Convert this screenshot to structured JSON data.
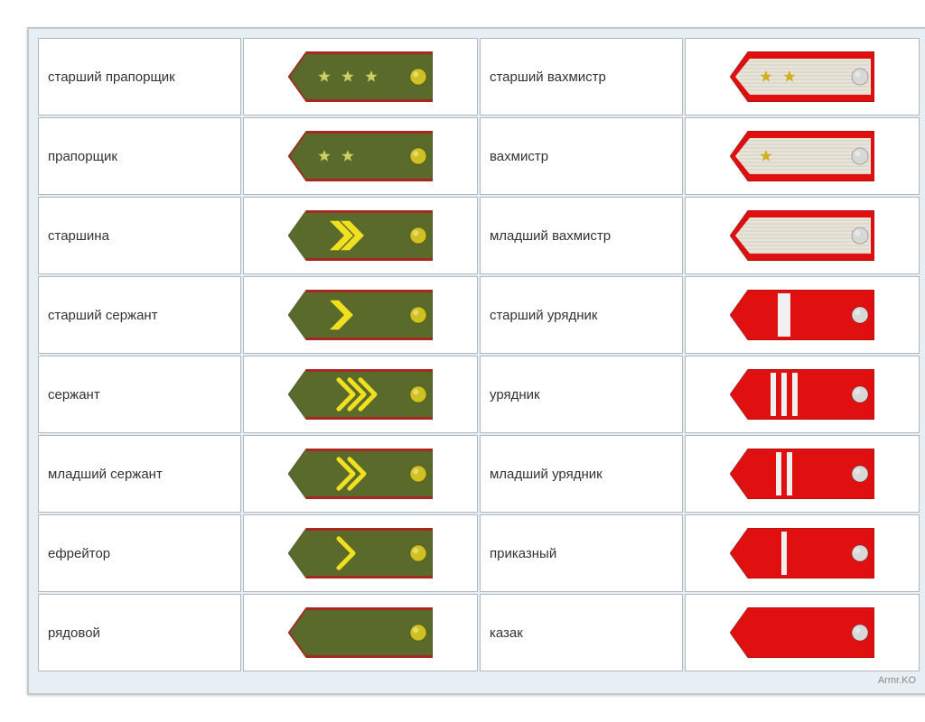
{
  "rows": [
    {
      "left_label": "старший прапорщик",
      "right_label": "старший вахмистр",
      "left": {
        "type": "army",
        "base": "#5a6a2a",
        "stars": 3,
        "button": "#d0c020",
        "trim": "#b02020"
      },
      "right": {
        "type": "cossack_stripe",
        "outer": "#e01010",
        "stripe": "#e8e4d8",
        "stars": 2,
        "button": "#d8d8d8"
      }
    },
    {
      "left_label": "прапорщик",
      "right_label": "вахмистр",
      "left": {
        "type": "army",
        "base": "#5a6a2a",
        "stars": 2,
        "button": "#d0c020",
        "trim": "#b02020"
      },
      "right": {
        "type": "cossack_stripe",
        "outer": "#e01010",
        "stripe": "#e8e4d8",
        "stars": 1,
        "button": "#d8d8d8"
      }
    },
    {
      "left_label": "старшина",
      "right_label": "младший вахмистр",
      "left": {
        "type": "army_chev",
        "base": "#5a6a2a",
        "chev_color": "#f0e020",
        "chev_count": 2,
        "filled": true,
        "button": "#d0c020",
        "trim": "#b02020"
      },
      "right": {
        "type": "cossack_stripe",
        "outer": "#e01010",
        "stripe": "#e8e4d8",
        "stars": 0,
        "button": "#d8d8d8"
      }
    },
    {
      "left_label": "старший сержант",
      "right_label": "старший урядник",
      "left": {
        "type": "army_chev",
        "base": "#5a6a2a",
        "chev_color": "#f0e020",
        "chev_count": 1,
        "filled": true,
        "button": "#d0c020",
        "trim": "#b02020"
      },
      "right": {
        "type": "cossack",
        "base": "#e01010",
        "bars": 1,
        "bar_color": "#f0f0f0",
        "bar_wide": true,
        "button": "#d8d8d8"
      }
    },
    {
      "left_label": "сержант",
      "right_label": "урядник",
      "left": {
        "type": "army_chev",
        "base": "#5a6a2a",
        "chev_color": "#f0e020",
        "chev_count": 3,
        "filled": false,
        "button": "#d0c020",
        "trim": "#b02020"
      },
      "right": {
        "type": "cossack",
        "base": "#e01010",
        "bars": 3,
        "bar_color": "#f0f0f0",
        "bar_wide": false,
        "button": "#d8d8d8"
      }
    },
    {
      "left_label": "младший сержант",
      "right_label": "младший урядник",
      "left": {
        "type": "army_chev",
        "base": "#5a6a2a",
        "chev_color": "#f0e020",
        "chev_count": 2,
        "filled": false,
        "button": "#d0c020",
        "trim": "#b02020"
      },
      "right": {
        "type": "cossack",
        "base": "#e01010",
        "bars": 2,
        "bar_color": "#f0f0f0",
        "bar_wide": false,
        "button": "#d8d8d8"
      }
    },
    {
      "left_label": "ефрейтор",
      "right_label": "приказный",
      "left": {
        "type": "army_chev",
        "base": "#5a6a2a",
        "chev_color": "#f0e020",
        "chev_count": 1,
        "filled": false,
        "button": "#d0c020",
        "trim": "#b02020"
      },
      "right": {
        "type": "cossack",
        "base": "#e01010",
        "bars": 1,
        "bar_color": "#f0f0f0",
        "bar_wide": false,
        "button": "#d8d8d8"
      }
    },
    {
      "left_label": "рядовой",
      "right_label": "казак",
      "left": {
        "type": "army",
        "base": "#5a6a2a",
        "stars": 0,
        "button": "#d0c020",
        "trim": "#b02020"
      },
      "right": {
        "type": "cossack",
        "base": "#e01010",
        "bars": 0,
        "bar_color": "#f0f0f0",
        "bar_wide": false,
        "button": "#d8d8d8"
      }
    }
  ],
  "layout": {
    "epaulet_w": 160,
    "epaulet_h": 56,
    "colors": {
      "bg": "#e8eff4",
      "cell_bg": "#ffffff",
      "border": "#b0b8c0",
      "text": "#333333"
    }
  },
  "watermark": "Armr.KO"
}
